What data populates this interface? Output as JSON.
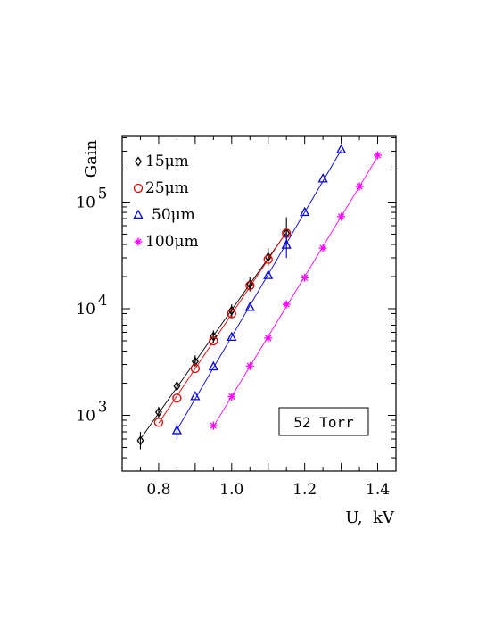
{
  "chart_data": {
    "type": "scatter",
    "y_scale": "log",
    "xlabel": "U,  kV",
    "ylabel": "Gain",
    "xlim": [
      0.7,
      1.45
    ],
    "ylim": [
      300,
      420000
    ],
    "x_ticks": [
      "0.8",
      "1.0",
      "1.2",
      "1.4"
    ],
    "y_ticks": [
      {
        "value": 1000,
        "base": "10",
        "exp": "3"
      },
      {
        "value": 10000,
        "base": "10",
        "exp": "4"
      },
      {
        "value": 100000,
        "base": "10",
        "exp": "5"
      }
    ],
    "annotation": "52 Torr",
    "legend_position": "top-left",
    "series": [
      {
        "name": "15μm",
        "marker": "diamond",
        "color": "#000000",
        "x": [
          0.75,
          0.8,
          0.85,
          0.9,
          0.95,
          1.0,
          1.05,
          1.1,
          1.15
        ],
        "y": [
          580,
          1070,
          1880,
          3200,
          5500,
          9600,
          17000,
          30500,
          51000
        ],
        "err_lo": [
          480,
          950,
          1700,
          2850,
          4800,
          8300,
          14500,
          25000,
          40000
        ],
        "err_hi": [
          700,
          1200,
          2080,
          3650,
          6250,
          11000,
          20000,
          37000,
          72000
        ]
      },
      {
        "name": "25μm",
        "marker": "circle",
        "color": "#e00000",
        "x": [
          0.8,
          0.85,
          0.9,
          0.95,
          1.0,
          1.05,
          1.1,
          1.15
        ],
        "y": [
          860,
          1450,
          2750,
          5000,
          9000,
          16500,
          29000,
          51000
        ],
        "err_lo": [],
        "err_hi": []
      },
      {
        "name": "50μm",
        "marker": "triangle",
        "color": "#0000e0",
        "x": [
          0.85,
          0.9,
          0.95,
          1.0,
          1.05,
          1.1,
          1.15,
          1.2,
          1.25,
          1.3
        ],
        "y": [
          720,
          1500,
          2850,
          5400,
          10300,
          20500,
          39500,
          80000,
          165000,
          310000
        ],
        "err_lo": [
          590,
          0,
          0,
          0,
          0,
          0,
          30000,
          0,
          0,
          0
        ],
        "err_hi": [
          840,
          0,
          0,
          0,
          0,
          0,
          50000,
          0,
          0,
          0
        ]
      },
      {
        "name": "100μm",
        "marker": "asterisk",
        "color": "#ff00ff",
        "x": [
          0.95,
          1.0,
          1.05,
          1.1,
          1.15,
          1.2,
          1.25,
          1.3,
          1.35,
          1.4
        ],
        "y": [
          800,
          1500,
          2900,
          5300,
          11000,
          19500,
          37000,
          73000,
          140000,
          275000
        ],
        "err_lo": [],
        "err_hi": []
      }
    ]
  }
}
